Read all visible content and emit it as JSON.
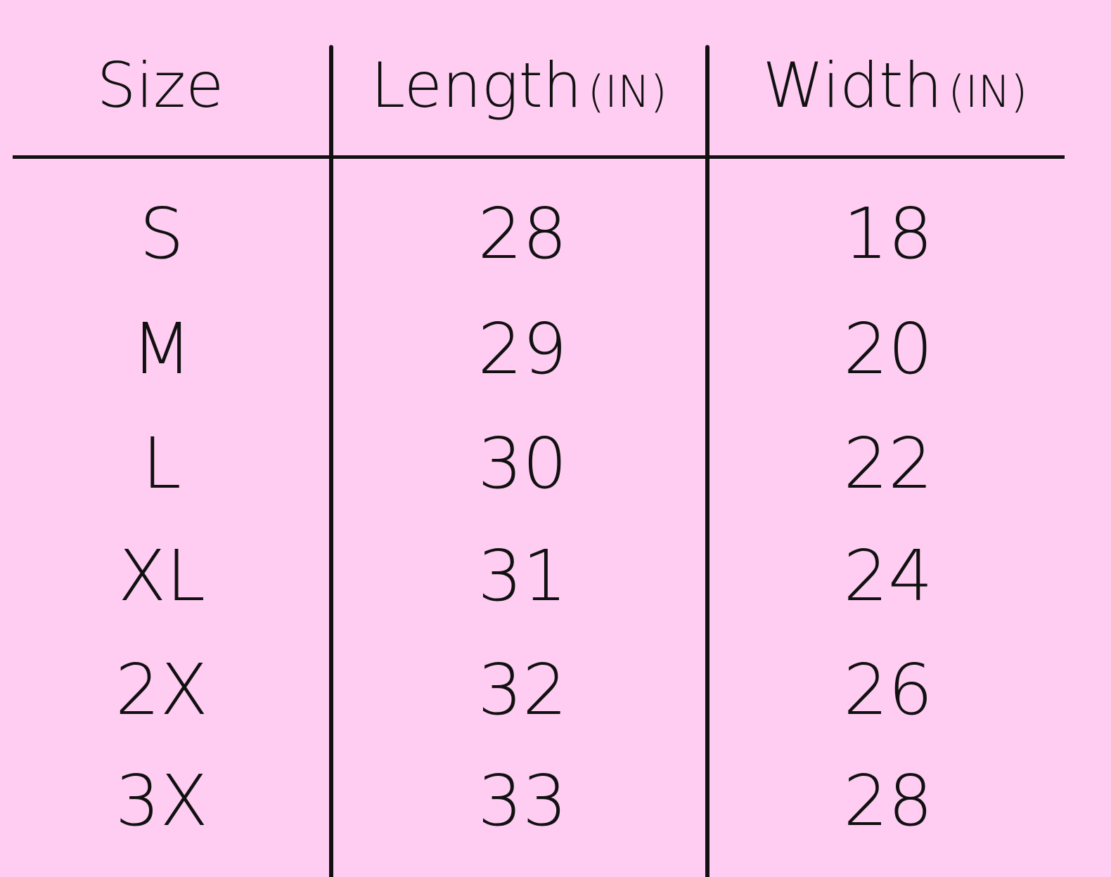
{
  "table": {
    "headers": [
      {
        "label": "Size",
        "unit": ""
      },
      {
        "label": "Length",
        "unit": "(IN)"
      },
      {
        "label": "Width",
        "unit": "(IN)"
      }
    ],
    "rows": [
      [
        "S",
        "28",
        "18"
      ],
      [
        "M",
        "29",
        "20"
      ],
      [
        "L",
        "30",
        "22"
      ],
      [
        "XL",
        "31",
        "24"
      ],
      [
        "2X",
        "32",
        "26"
      ],
      [
        "3X",
        "33",
        "28"
      ]
    ]
  },
  "colors": {
    "background": "#ffccf2",
    "ink": "#111111"
  }
}
